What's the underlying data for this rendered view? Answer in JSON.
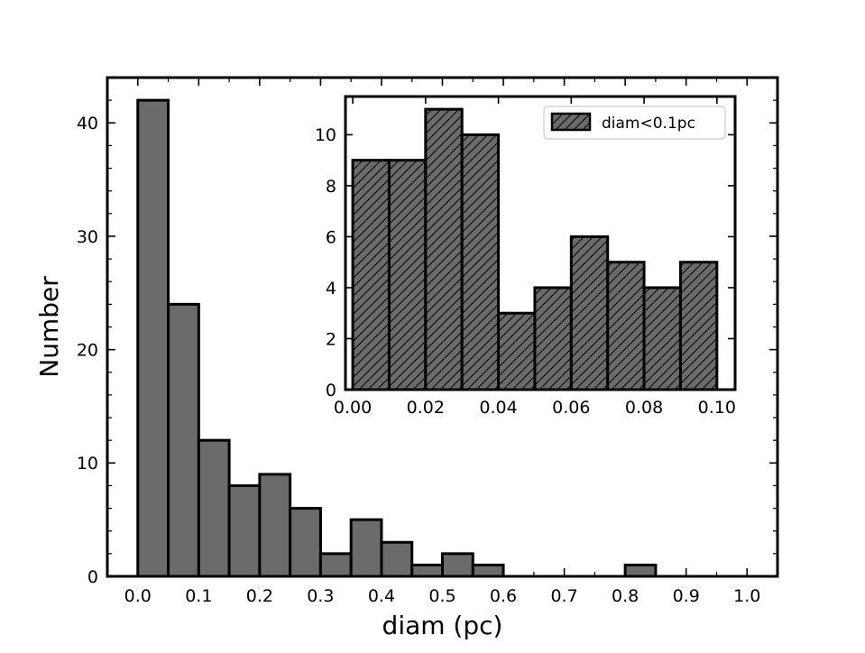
{
  "chart_data": [
    {
      "type": "bar",
      "role": "main-histogram",
      "bin_edges": [
        0.0,
        0.05,
        0.1,
        0.15,
        0.2,
        0.25,
        0.3,
        0.35,
        0.4,
        0.45,
        0.5,
        0.55,
        0.6,
        0.65,
        0.7,
        0.75,
        0.8,
        0.85,
        0.9,
        0.95,
        1.0
      ],
      "values": [
        42,
        24,
        12,
        8,
        9,
        6,
        2,
        5,
        3,
        1,
        2,
        1,
        0,
        0,
        0,
        0,
        1,
        0,
        0,
        0
      ],
      "xlabel": "diam (pc)",
      "ylabel": "Number",
      "xlim": [
        -0.05,
        1.05
      ],
      "ylim": [
        0,
        44
      ],
      "xticks": [
        "0.0",
        "0.1",
        "0.2",
        "0.3",
        "0.4",
        "0.5",
        "0.6",
        "0.7",
        "0.8",
        "0.9",
        "1.0"
      ],
      "yticks": [
        "0",
        "10",
        "20",
        "30",
        "40"
      ],
      "bar_color": "#6b6b6b",
      "edge_color": "#000000",
      "grid": false
    },
    {
      "type": "bar",
      "role": "inset-histogram",
      "bin_edges": [
        0.0,
        0.01,
        0.02,
        0.03,
        0.04,
        0.05,
        0.06,
        0.07,
        0.08,
        0.09,
        0.1
      ],
      "values": [
        9,
        9,
        11,
        10,
        3,
        4,
        6,
        5,
        4,
        5
      ],
      "xlim": [
        -0.002,
        0.105
      ],
      "ylim": [
        0,
        11.5
      ],
      "xticks": [
        "0.00",
        "0.02",
        "0.04",
        "0.06",
        "0.08",
        "0.10"
      ],
      "yticks": [
        "0",
        "2",
        "4",
        "6",
        "8",
        "10"
      ],
      "legend": [
        "diam<0.1pc"
      ],
      "legend_position": "top-right",
      "hatch": "diagonal",
      "bar_color": "#6b6b6b",
      "edge_color": "#000000",
      "grid": false
    }
  ]
}
